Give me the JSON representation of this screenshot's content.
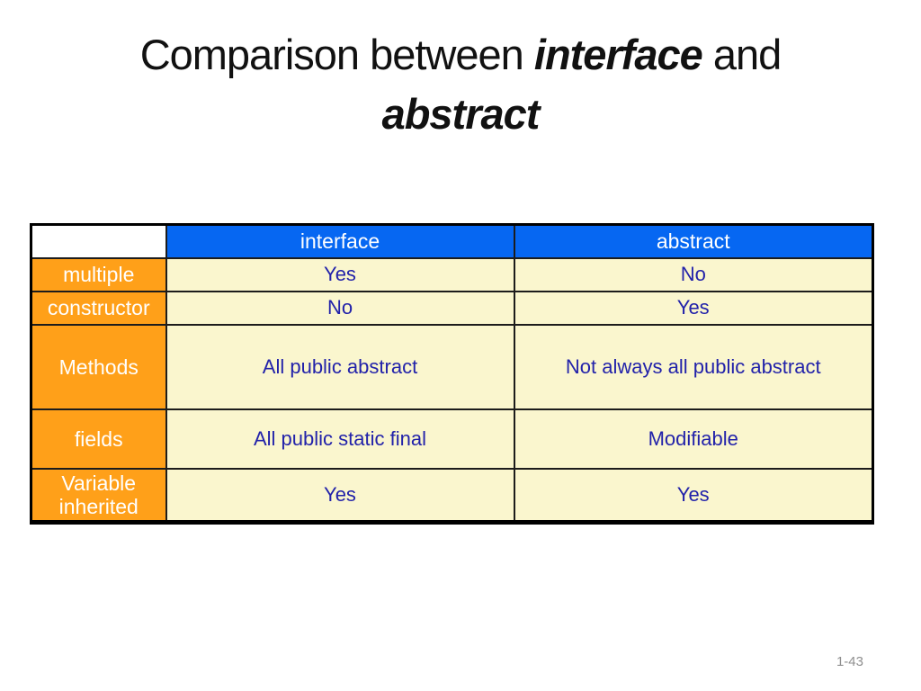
{
  "slide": {
    "title": {
      "line1_text": "Comparison between ",
      "line1_em": "interface",
      "line1_tail": " and",
      "line2_em": "abstract"
    },
    "page_number": "1-43"
  },
  "table": {
    "header": {
      "corner": "",
      "interface_col": "interface",
      "abstract_col": "abstract"
    },
    "rows": [
      {
        "label": "multiple",
        "interface": "Yes",
        "abstract": "No"
      },
      {
        "label": "constructor",
        "interface": "No",
        "abstract": "Yes"
      },
      {
        "label": "Methods",
        "interface": "All public abstract",
        "abstract": "Not always all public abstract"
      },
      {
        "label": "fields",
        "interface": "All public static final",
        "abstract": "Modifiable"
      },
      {
        "label": "Variable inherited",
        "interface": "Yes",
        "abstract": "Yes"
      }
    ]
  },
  "colors": {
    "header_fill": "#0667f2",
    "header_text": "#ffffff",
    "label_fill": "#ffa019",
    "label_text": "#ffffff",
    "cell_fill": "#faf6ce",
    "cell_text": "#2222aa",
    "border": "#1c1c1c",
    "outer_border": "#000000",
    "page_number_text": "#8f8f8f"
  }
}
